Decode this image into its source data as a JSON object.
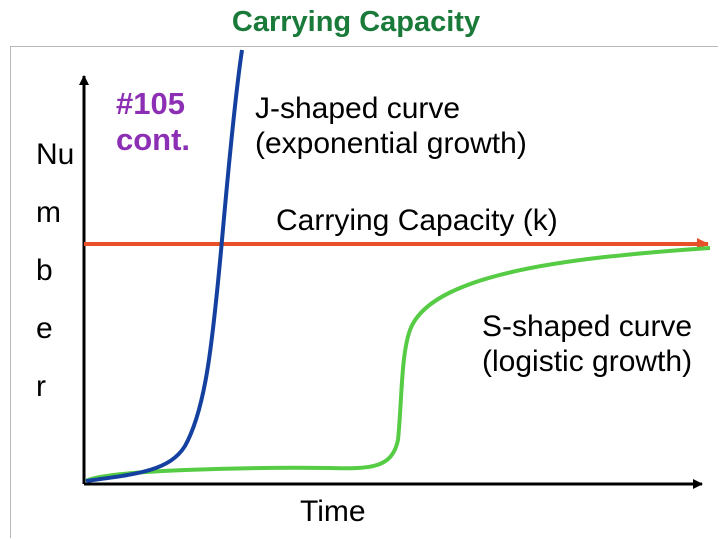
{
  "title": "Carrying Capacity",
  "slide_number": "#105",
  "slide_number_suffix": "cont.",
  "y_axis_label": [
    "Nu",
    "m",
    "b",
    "e",
    "r"
  ],
  "x_axis_label": "Time",
  "labels": {
    "j_curve_line1": "J-shaped curve",
    "j_curve_line2": "(exponential growth)",
    "carrying_capacity": "Carrying Capacity (k)",
    "s_curve_line1": "S-shaped curve",
    "s_curve_line2": "(logistic growth)"
  },
  "colors": {
    "title": "#1a7a3a",
    "badge": "#8d2fb5",
    "j_curve": "#1440a0",
    "s_curve": "#55cc44",
    "carrying_capacity": "#e8502a",
    "axes": "#000000"
  }
}
